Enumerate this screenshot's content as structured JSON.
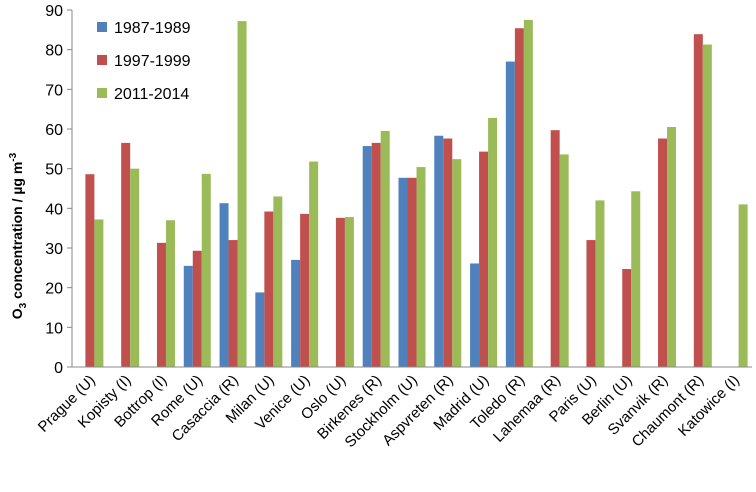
{
  "chart_data": {
    "type": "bar",
    "ylabel_parts": [
      "O",
      "3",
      " concentration / µg m",
      "-3"
    ],
    "ylim": [
      0,
      90
    ],
    "yticks": [
      0,
      10,
      20,
      30,
      40,
      50,
      60,
      70,
      80,
      90
    ],
    "grid": false,
    "legend_position": "top-left",
    "categories": [
      "Prague (U)",
      "Kopisty  (I)",
      "Bottrop  (I)",
      "Rome (U)",
      "Casaccia  (R)",
      "Milan  (U)",
      "Venice  (U)",
      "Oslo  (U)",
      "Birkenes  (R)",
      "Stockholm  (U)",
      "Aspvreten  (R)",
      "Madrid  (U)",
      "Toledo  (R)",
      "Lahemaa  (R)",
      "Paris  (U)",
      "Berlin  (U)",
      "Svanvik  (R)",
      "Chaumont  (R)",
      "Katowice  (I)"
    ],
    "series": [
      {
        "name": "1987-1989",
        "color": "#4F81BD",
        "values": [
          null,
          null,
          null,
          25.5,
          41.3,
          18.8,
          27.0,
          null,
          55.7,
          47.7,
          58.3,
          26.1,
          77.0,
          null,
          null,
          null,
          null,
          null,
          null
        ]
      },
      {
        "name": "1997-1999",
        "color": "#C0504D",
        "values": [
          48.6,
          56.5,
          31.3,
          29.3,
          32.0,
          39.2,
          38.6,
          37.6,
          56.5,
          47.7,
          57.6,
          54.3,
          85.4,
          59.7,
          32.0,
          24.7,
          57.6,
          83.9,
          null
        ]
      },
      {
        "name": "2011-2014",
        "color": "#9BBB59",
        "values": [
          37.2,
          50.0,
          37.0,
          48.7,
          87.2,
          43.0,
          51.8,
          37.8,
          59.5,
          50.4,
          52.4,
          62.8,
          87.5,
          53.6,
          42.0,
          44.3,
          60.5,
          81.3,
          41.0
        ]
      }
    ]
  }
}
